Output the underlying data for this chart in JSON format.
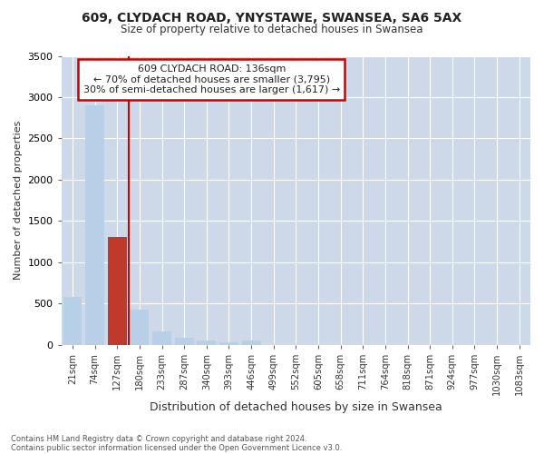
{
  "title_line1": "609, CLYDACH ROAD, YNYSTAWE, SWANSEA, SA6 5AX",
  "title_line2": "Size of property relative to detached houses in Swansea",
  "xlabel": "Distribution of detached houses by size in Swansea",
  "ylabel": "Number of detached properties",
  "annotation_line1": "609 CLYDACH ROAD: 136sqm",
  "annotation_line2": "← 70% of detached houses are smaller (3,795)",
  "annotation_line3": "30% of semi-detached houses are larger (1,617) →",
  "categories": [
    "21sqm",
    "74sqm",
    "127sqm",
    "180sqm",
    "233sqm",
    "287sqm",
    "340sqm",
    "393sqm",
    "446sqm",
    "499sqm",
    "552sqm",
    "605sqm",
    "658sqm",
    "711sqm",
    "764sqm",
    "818sqm",
    "871sqm",
    "924sqm",
    "977sqm",
    "1030sqm",
    "1083sqm"
  ],
  "values": [
    580,
    2900,
    1300,
    420,
    160,
    80,
    55,
    30,
    55,
    0,
    0,
    0,
    0,
    0,
    0,
    0,
    0,
    0,
    0,
    0,
    0
  ],
  "bar_color": "#b8cfe8",
  "highlight_bar_color": "#c0392b",
  "highlight_index": 2,
  "vline_x": 2.5,
  "vline_color": "#cc0000",
  "annotation_box_color": "#cc0000",
  "background_color": "#ffffff",
  "grid_color": "#cdd9e8",
  "ylim": [
    0,
    3500
  ],
  "yticks": [
    0,
    500,
    1000,
    1500,
    2000,
    2500,
    3000,
    3500
  ],
  "footnote1": "Contains HM Land Registry data © Crown copyright and database right 2024.",
  "footnote2": "Contains public sector information licensed under the Open Government Licence v3.0."
}
